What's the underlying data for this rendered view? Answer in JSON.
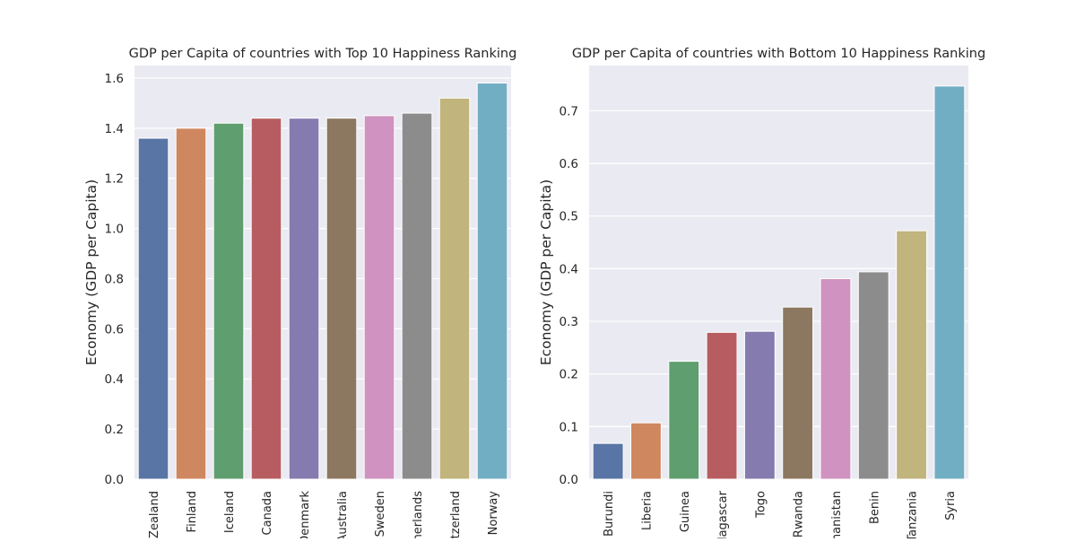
{
  "chart_data": [
    {
      "type": "bar",
      "title": "GDP per Capita of countries with Top 10 Happiness Ranking",
      "xlabel": "",
      "ylabel": "Economy (GDP per Capita)",
      "categories": [
        "New Zealand",
        "Finland",
        "Iceland",
        "Canada",
        "Denmark",
        "Australia",
        "Sweden",
        "Netherlands",
        "Switzerland",
        "Norway"
      ],
      "values": [
        1.36,
        1.4,
        1.42,
        1.44,
        1.44,
        1.44,
        1.45,
        1.46,
        1.52,
        1.58
      ],
      "ylim": [
        0,
        1.65
      ],
      "yticks": [
        "0.0",
        "0.2",
        "0.4",
        "0.6",
        "0.8",
        "1.0",
        "1.2",
        "1.4",
        "1.6"
      ],
      "grid": true
    },
    {
      "type": "bar",
      "title": "GDP per Capita of countries with Bottom 10 Happiness Ranking",
      "xlabel": "",
      "ylabel": "Economy (GDP per Capita)",
      "categories": [
        "Burundi",
        "Liberia",
        "Guinea",
        "Madagascar",
        "Togo",
        "Rwanda",
        "Afghanistan",
        "Benin",
        "Tanzania",
        "Syria"
      ],
      "values": [
        0.068,
        0.107,
        0.224,
        0.279,
        0.281,
        0.327,
        0.381,
        0.394,
        0.472,
        0.747
      ],
      "ylim": [
        0,
        0.786
      ],
      "yticks": [
        "0.0",
        "0.1",
        "0.2",
        "0.3",
        "0.4",
        "0.5",
        "0.6",
        "0.7"
      ],
      "grid": true
    }
  ],
  "colors": [
    "#5875a5",
    "#cf875f",
    "#5f9e6e",
    "#b75d61",
    "#857bae",
    "#8c7760",
    "#d092c0",
    "#8c8c8c",
    "#c1b47c",
    "#72aec3"
  ]
}
